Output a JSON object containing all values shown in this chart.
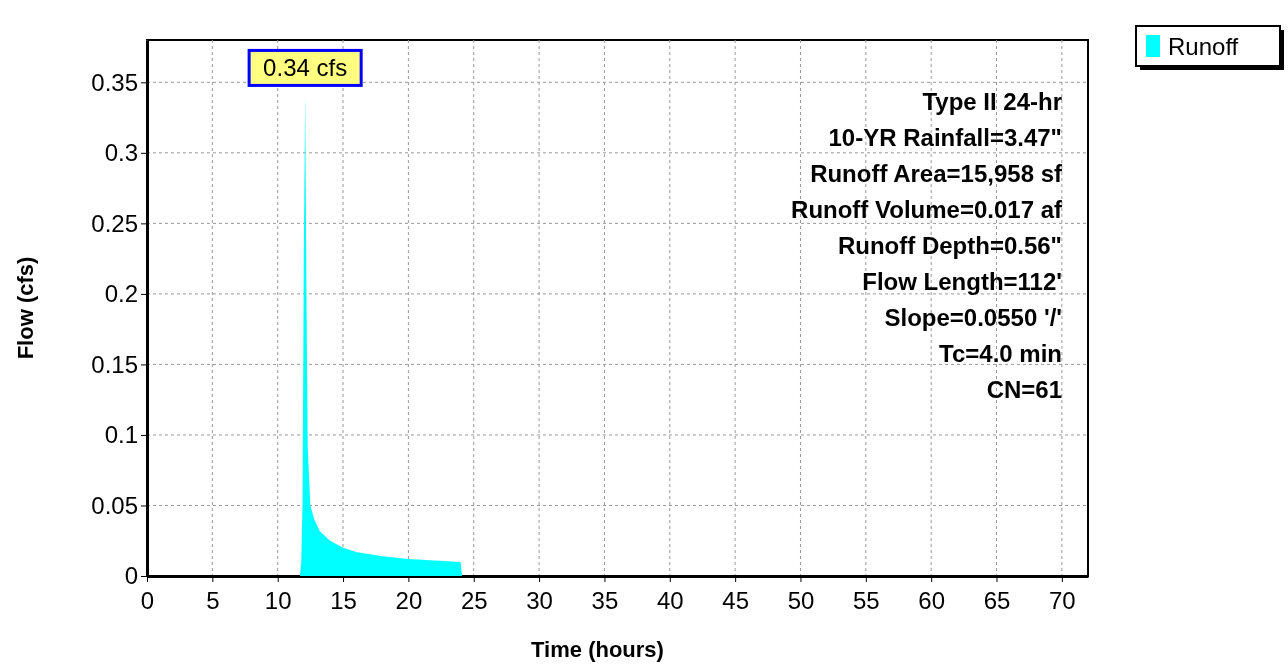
{
  "chart_data": {
    "type": "area",
    "xlabel": "Time  (hours)",
    "ylabel": "Flow  (cfs)",
    "xlim": [
      0,
      72
    ],
    "xticks": [
      0,
      5,
      10,
      15,
      20,
      25,
      30,
      35,
      40,
      45,
      50,
      55,
      60,
      65,
      70
    ],
    "ylim": [
      0,
      0.38
    ],
    "yticks": [
      0,
      0.05,
      0.1,
      0.15,
      0.2,
      0.25,
      0.3,
      0.35
    ],
    "grid": true,
    "legend": "top right",
    "series": [
      {
        "name": "Runoff",
        "color": "#00ffff",
        "x": [
          0,
          11.7,
          11.8,
          11.9,
          12.0,
          12.1,
          12.2,
          12.3,
          12.5,
          12.8,
          13.2,
          14,
          15,
          16,
          18,
          20,
          22,
          24,
          24.1,
          30,
          40,
          50,
          60,
          72
        ],
        "values": [
          0,
          0,
          0.01,
          0.05,
          0.23,
          0.34,
          0.2,
          0.09,
          0.05,
          0.04,
          0.032,
          0.025,
          0.02,
          0.017,
          0.014,
          0.012,
          0.011,
          0.01,
          0,
          0,
          0,
          0,
          0,
          0
        ]
      }
    ],
    "annotations": [
      {
        "text": "0.34 cfs",
        "x": 12.1,
        "y": 0.34
      },
      "Type II 24-hr",
      "10-YR Rainfall=3.47\"",
      "Runoff Area=15,958 sf",
      "Runoff Volume=0.017 af",
      "Runoff Depth=0.56\"",
      "Flow Length=112'",
      "Slope=0.0550 '/'",
      "Tc=4.0 min",
      "CN=61"
    ]
  }
}
